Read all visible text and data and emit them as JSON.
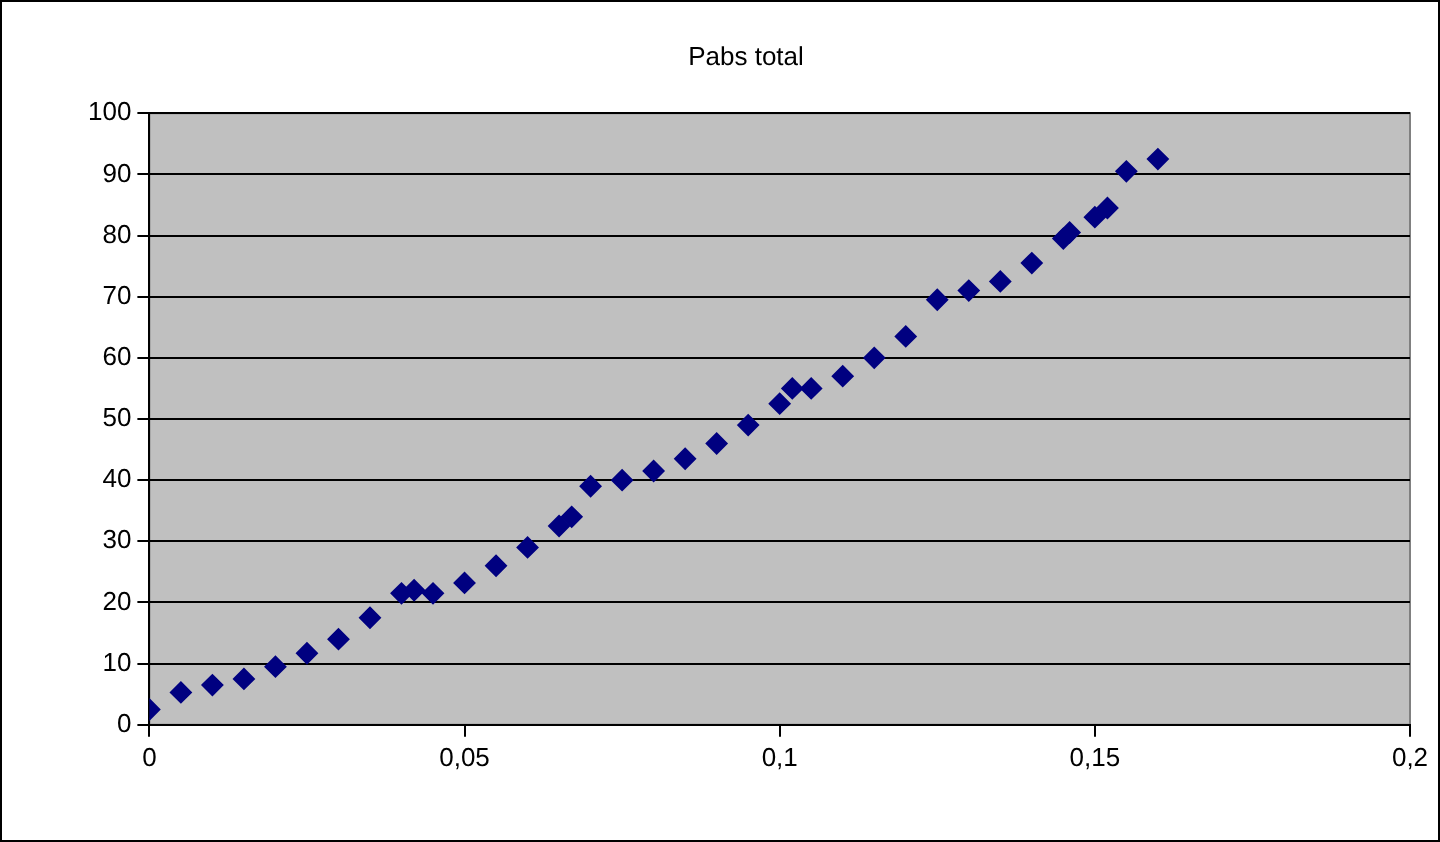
{
  "chart_data": {
    "type": "scatter",
    "title": "Pabs total",
    "x": [
      0,
      0.005,
      0.01,
      0.015,
      0.02,
      0.025,
      0.03,
      0.035,
      0.04,
      0.042,
      0.045,
      0.05,
      0.055,
      0.06,
      0.065,
      0.067,
      0.07,
      0.075,
      0.08,
      0.085,
      0.09,
      0.095,
      0.1,
      0.102,
      0.105,
      0.11,
      0.115,
      0.12,
      0.125,
      0.13,
      0.135,
      0.14,
      0.145,
      0.146,
      0.15,
      0.152,
      0.155,
      0.16
    ],
    "series": [
      {
        "color": "#000080",
        "values": [
          2.5,
          5.3,
          6.5,
          7.5,
          9.5,
          11.7,
          14,
          17.5,
          21.5,
          22,
          21.5,
          23.2,
          26,
          29,
          32.5,
          34,
          39,
          40,
          41.5,
          43.5,
          46,
          49,
          52.5,
          55,
          55,
          57,
          60,
          63.5,
          69.5,
          71,
          72.5,
          75.5,
          79.5,
          80.5,
          83,
          84.5,
          90.5,
          92.5
        ]
      }
    ],
    "xlim": [
      0,
      0.2
    ],
    "xticks": [
      {
        "value": 0,
        "label": "0"
      },
      {
        "value": 0.05,
        "label": "0,05"
      },
      {
        "value": 0.1,
        "label": "0,1"
      },
      {
        "value": 0.15,
        "label": "0,15"
      },
      {
        "value": 0.2,
        "label": "0,2"
      }
    ],
    "ylim": [
      0,
      100
    ],
    "yticks": [
      0,
      10,
      20,
      30,
      40,
      50,
      60,
      70,
      80,
      90,
      100
    ],
    "grid": "y",
    "legend": false,
    "marker": "diamond"
  }
}
